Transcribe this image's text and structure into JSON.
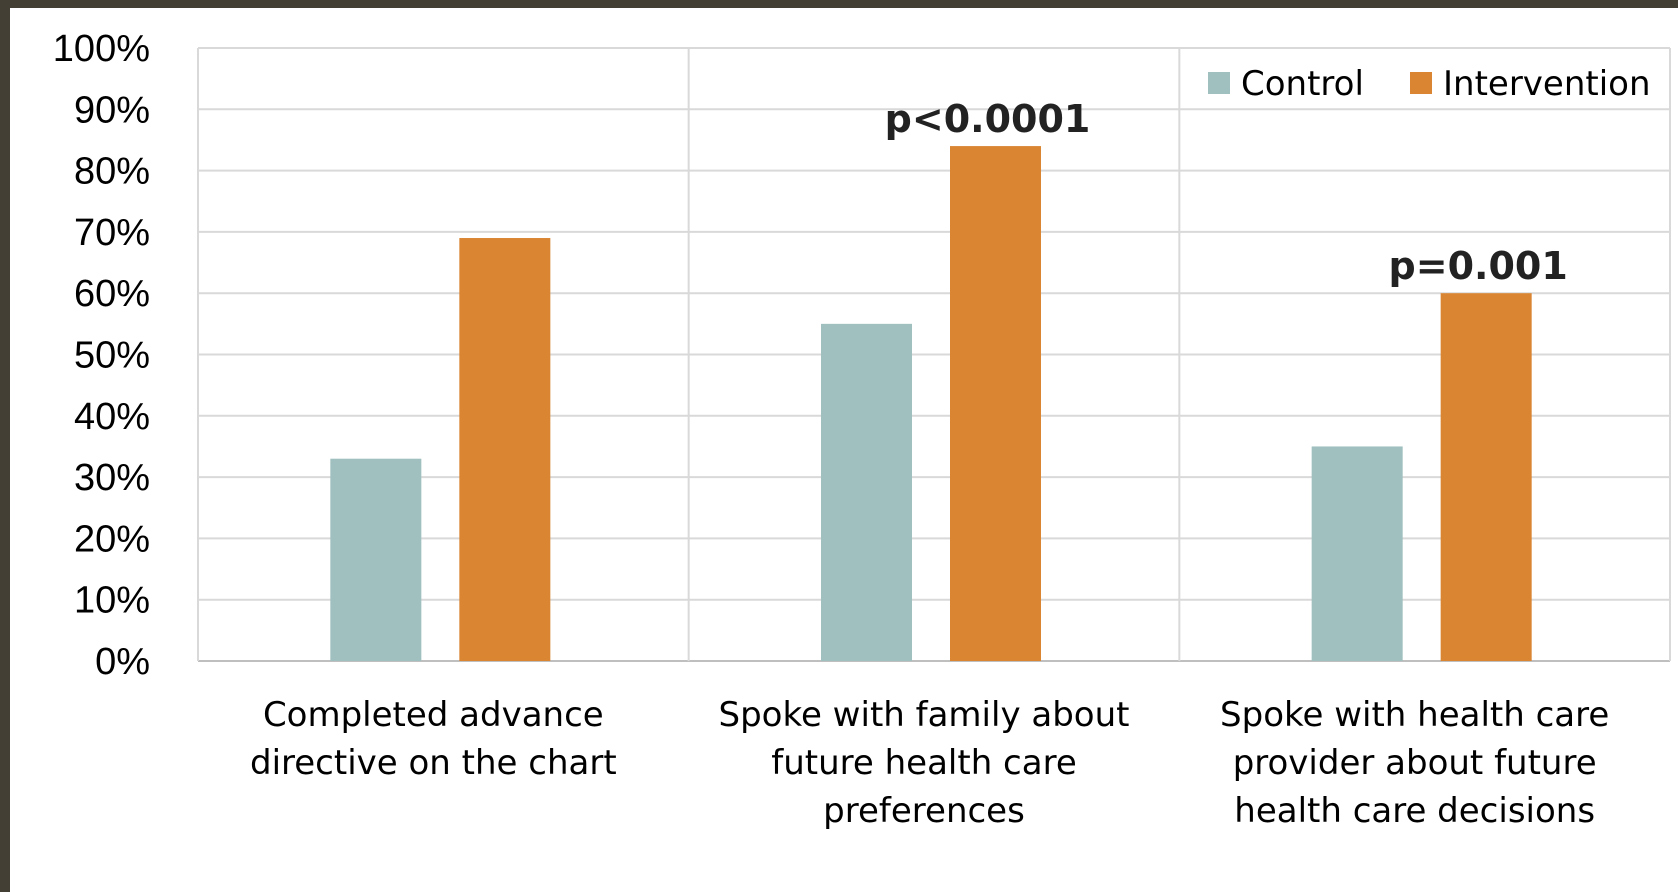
{
  "chart_data": {
    "type": "bar",
    "categories": [
      [
        "Completed advance",
        "directive on the chart"
      ],
      [
        "Spoke with family about",
        "future health care",
        "preferences"
      ],
      [
        "Spoke with health care",
        "provider about future",
        "health care decisions"
      ]
    ],
    "series": [
      {
        "name": "Control",
        "values": [
          33,
          55,
          35
        ],
        "color": "#9fc0be"
      },
      {
        "name": "Intervention",
        "values": [
          69,
          84,
          60
        ],
        "color": "#d98532"
      }
    ],
    "ylim": [
      0,
      100
    ],
    "y_ticks": [
      "0%",
      "10%",
      "20%",
      "30%",
      "40%",
      "50%",
      "60%",
      "70%",
      "80%",
      "90%",
      "100%"
    ],
    "grid": true,
    "legend_position": "top-right",
    "annotations": [
      {
        "text": "p<0.0001",
        "category_index": 1,
        "series_index": 1
      },
      {
        "text": "p=0.001",
        "category_index": 2,
        "series_index": 1
      }
    ],
    "title": "",
    "xlabel": "",
    "ylabel": ""
  },
  "colors": {
    "background_border": "#433f35",
    "grid": "#d9d9d9",
    "axis": "#bfbfbf"
  }
}
